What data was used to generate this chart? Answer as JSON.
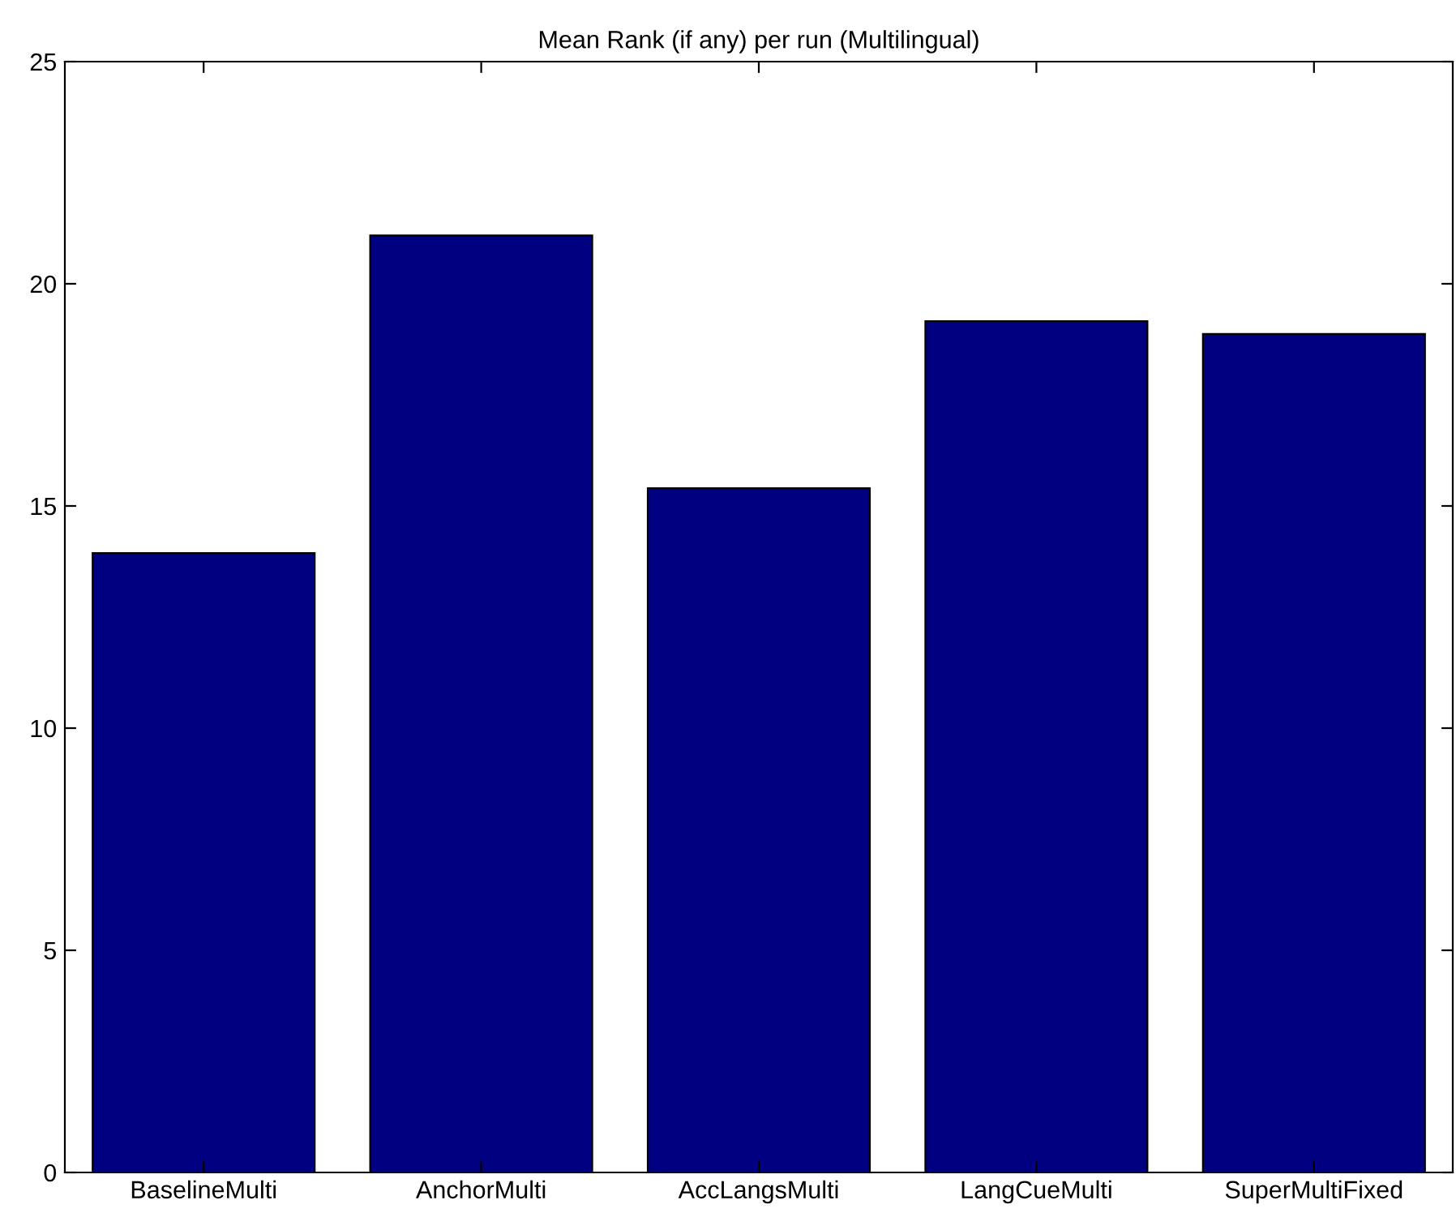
{
  "chart_data": {
    "type": "bar",
    "title": "Mean Rank (if any) per run (Multilingual)",
    "categories": [
      "BaselineMulti",
      "AnchorMulti",
      "AccLangsMulti",
      "LangCueMulti",
      "SuperMultiFixed"
    ],
    "values": [
      13.94,
      21.09,
      15.4,
      19.16,
      18.87
    ],
    "color": "#000080",
    "ylim": [
      0,
      25
    ],
    "yticks": [
      0,
      5,
      10,
      15,
      20,
      25
    ],
    "grid": false
  }
}
